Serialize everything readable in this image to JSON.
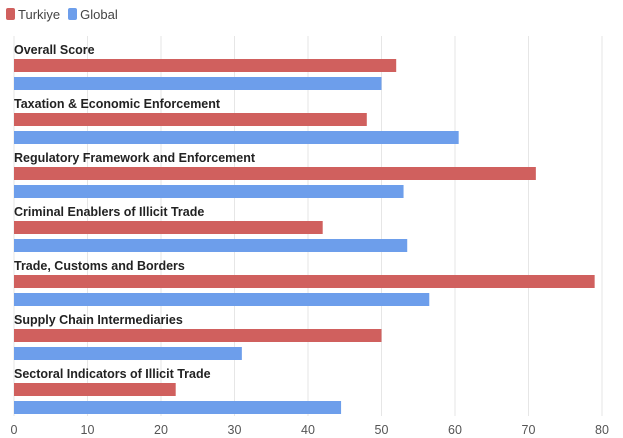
{
  "chart_data": {
    "type": "bar",
    "orientation": "horizontal",
    "categories": [
      "Overall Score",
      "Taxation & Economic Enforcement",
      "Regulatory Framework and Enforcement",
      "Criminal Enablers of Illicit Trade",
      "Trade, Customs and Borders",
      "Supply Chain Intermediaries",
      "Sectoral Indicators of Illicit Trade"
    ],
    "series": [
      {
        "name": "Turkiye",
        "color": "#d0605e",
        "values": [
          52,
          48,
          71,
          42,
          79,
          50,
          22
        ]
      },
      {
        "name": "Global",
        "color": "#6d9eeb",
        "values": [
          50,
          60.5,
          53,
          53.5,
          56.5,
          31,
          44.5
        ]
      }
    ],
    "xlim": [
      0,
      80
    ],
    "xticks": [
      "0",
      "10",
      "20",
      "30",
      "40",
      "50",
      "60",
      "70",
      "80"
    ],
    "grid": true,
    "legend_position": "top-left"
  }
}
